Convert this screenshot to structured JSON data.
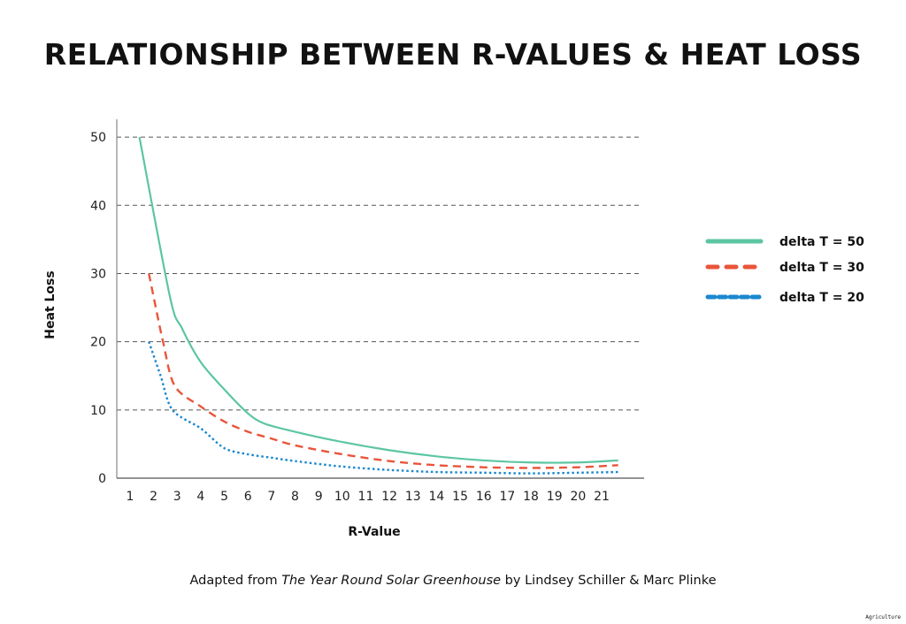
{
  "chart_data": {
    "type": "line",
    "title": "RELATIONSHIP BETWEEN R-VALUES & HEAT LOSS",
    "xlabel": "R-Value",
    "ylabel": "Heat Loss",
    "xlim": [
      0.44,
      22.8
    ],
    "ylim": [
      0,
      52.6
    ],
    "x_ticks": [
      1,
      2,
      3,
      4,
      5,
      6,
      7,
      8,
      9,
      10,
      11,
      12,
      13,
      14,
      15,
      16,
      17,
      18,
      19,
      20,
      21
    ],
    "y_ticks": [
      0,
      10,
      20,
      30,
      40,
      50
    ],
    "grid": "horizontal dashed",
    "legend_position": "right",
    "series": [
      {
        "name": "delta T = 50",
        "color": "#5cc6a0",
        "style": "solid",
        "points": [
          [
            1.4,
            50
          ],
          [
            2.7,
            26.5
          ],
          [
            3.2,
            22
          ],
          [
            4,
            17
          ],
          [
            5,
            13
          ],
          [
            6,
            9.5
          ],
          [
            6.7,
            8
          ],
          [
            8,
            6.8
          ],
          [
            10,
            5.3
          ],
          [
            12,
            4.1
          ],
          [
            14,
            3.2
          ],
          [
            16,
            2.6
          ],
          [
            18,
            2.3
          ],
          [
            20,
            2.3
          ],
          [
            21.7,
            2.6
          ]
        ]
      },
      {
        "name": "delta T = 30",
        "color": "#e9553b",
        "style": "dashed",
        "points": [
          [
            1.8,
            30
          ],
          [
            2.4,
            20
          ],
          [
            2.9,
            13.5
          ],
          [
            4,
            10.5
          ],
          [
            5,
            8.3
          ],
          [
            6,
            6.8
          ],
          [
            7,
            5.8
          ],
          [
            8,
            4.8
          ],
          [
            10,
            3.5
          ],
          [
            12,
            2.5
          ],
          [
            14,
            1.9
          ],
          [
            16,
            1.6
          ],
          [
            18,
            1.5
          ],
          [
            20,
            1.6
          ],
          [
            21.7,
            1.9
          ]
        ]
      },
      {
        "name": "delta T = 20",
        "color": "#1b88cf",
        "style": "dotted",
        "points": [
          [
            1.8,
            20
          ],
          [
            2.3,
            15
          ],
          [
            2.8,
            10
          ],
          [
            4,
            7.3
          ],
          [
            5,
            4.4
          ],
          [
            6,
            3.5
          ],
          [
            7,
            3
          ],
          [
            8,
            2.5
          ],
          [
            10,
            1.7
          ],
          [
            12,
            1.2
          ],
          [
            14,
            0.9
          ],
          [
            16,
            0.8
          ],
          [
            18,
            0.7
          ],
          [
            20,
            0.8
          ],
          [
            21.7,
            0.9
          ]
        ]
      }
    ]
  },
  "caption": {
    "prefix": "Adapted from ",
    "book": "The Year Round Solar Greenhouse",
    "suffix": " by Lindsey Schiller & Marc Plinke"
  },
  "watermark": "Agriculture"
}
